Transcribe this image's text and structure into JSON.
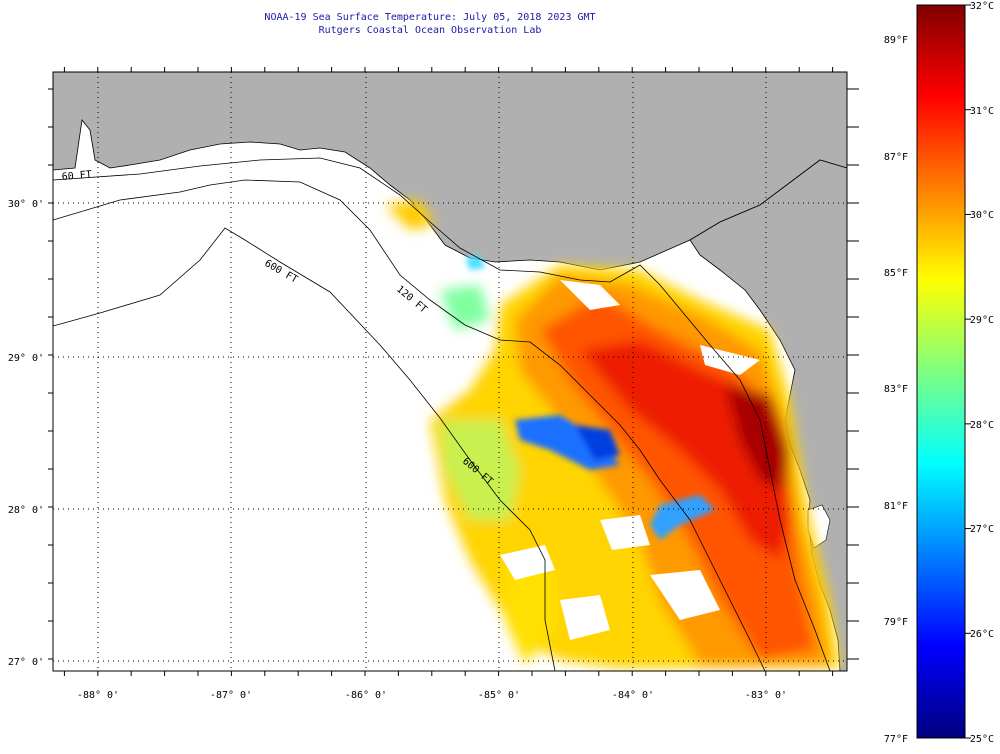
{
  "header": {
    "title": "NOAA-19 Sea Surface Temperature:  July 05, 2018 2023 GMT",
    "subtitle": "Rutgers Coastal Ocean Observation Lab"
  },
  "colors": {
    "land": "#b0b0b0",
    "title_text": "#1a1aa8",
    "ramp": [
      "#00007f",
      "#0000ff",
      "#007fff",
      "#00ffff",
      "#7fff7f",
      "#ffff00",
      "#ff7f00",
      "#ff0000",
      "#7f0000"
    ]
  },
  "map": {
    "lon_labels": [
      "-88° 0'",
      "-87° 0'",
      "-86° 0'",
      "-85° 0'",
      "-84° 0'",
      "-83° 0'"
    ],
    "lat_labels": [
      "30° 0'",
      "29° 0'",
      "28° 0'",
      "27° 0'"
    ],
    "isobath_labels": [
      "600 FT",
      "120 FT",
      "600 FT",
      "60 FT"
    ]
  },
  "colorbar": {
    "celsius": [
      {
        "value": 32,
        "label": "32°C"
      },
      {
        "value": 31,
        "label": "31°C"
      },
      {
        "value": 30,
        "label": "30°C"
      },
      {
        "value": 29,
        "label": "29°C"
      },
      {
        "value": 28,
        "label": "28°C"
      },
      {
        "value": 27,
        "label": "27°C"
      },
      {
        "value": 26,
        "label": "26°C"
      },
      {
        "value": 25,
        "label": "25°C"
      }
    ],
    "fahrenheit": [
      {
        "value": 89,
        "label": "89°F"
      },
      {
        "value": 87,
        "label": "87°F"
      },
      {
        "value": 85,
        "label": "85°F"
      },
      {
        "value": 83,
        "label": "83°F"
      },
      {
        "value": 81,
        "label": "81°F"
      },
      {
        "value": 79,
        "label": "79°F"
      },
      {
        "value": 77,
        "label": "77°F"
      }
    ],
    "range_c": [
      25,
      32
    ]
  }
}
